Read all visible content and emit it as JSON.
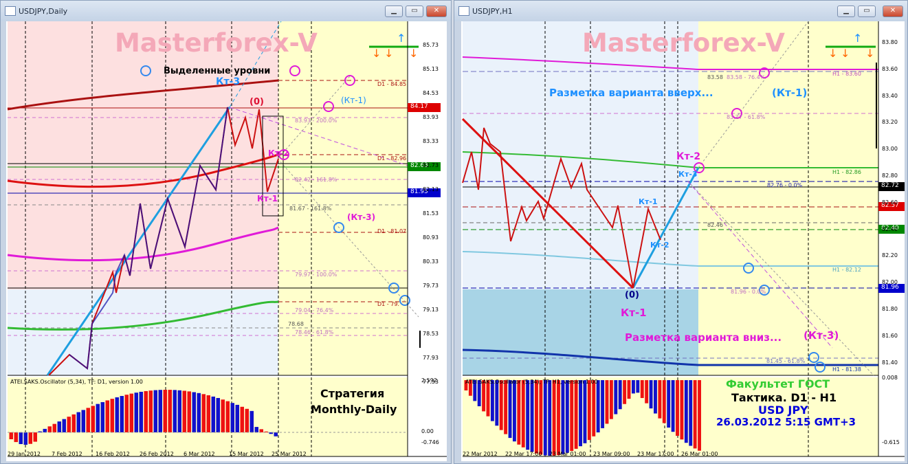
{
  "left": {
    "title": "USDJPY,Daily",
    "watermark": "Masterforex-V",
    "label_levels": "Выделенные уровни",
    "kt3": "Кт-3",
    "zero": "(0)",
    "kt1_paren": "(Кт-1)",
    "kt2": "Кт-2",
    "kt1": "Кт-1",
    "kt3_paren": "(Кт-3)",
    "price_axis": [
      "85.73",
      "85.13",
      "84.53",
      "83.93",
      "83.33",
      "82.73",
      "82.13",
      "81.53",
      "80.93",
      "80.33",
      "79.73",
      "79.13",
      "78.53",
      "77.93",
      "77.33"
    ],
    "tag_red": "84.17",
    "tag_green": "82.63",
    "tag_blue": "81.95",
    "lvl_d1_8485": "D1 - 84.85",
    "lvl_200": "83.93 - 200.0%",
    "lvl_d1_8296": "D1 - 82.96",
    "lvl_1618a": "82.42 - 161.8%",
    "lvl_1618b": "81.67 - 161.8%",
    "lvl_d1_8107": "D1 - 81.07",
    "lvl_100": "79.97 - 100.0%",
    "lvl_d1_79": "D1 - 79.",
    "lvl_764": "79.04 - 76.4%",
    "lvl_7868": "78.68",
    "lvl_618": "78.46 - 61.8%",
    "osc_title": "ATEI.SAKS.Oscillator (5,34), TF: D1, version 1.00",
    "osc_axis": [
      "2.592",
      "0.00",
      "-0.746"
    ],
    "strategy_line1": "Стратегия",
    "strategy_line2": "Monthly-Daily",
    "time_axis": [
      "29 Jan 2012",
      "7 Feb 2012",
      "16 Feb 2012",
      "26 Feb 2012",
      "6 Mar 2012",
      "15 Mar 2012",
      "25 Mar 2012"
    ]
  },
  "right": {
    "title": "USDJPY,H1",
    "watermark": "Masterforex-V",
    "up_text": "Разметка варианта вверх...",
    "down_text": "Разметка варианта вниз...",
    "kt1_paren": "(Кт-1)",
    "kt2": "Кт-2",
    "kt3": "Кт-3",
    "kt1": "Кт-1",
    "kt2b": "Кт-2",
    "zero": "(0)",
    "kt1_big": "Кт-1",
    "kt3_paren": "(Кт-3)",
    "price_axis": [
      "83.80",
      "83.60",
      "83.40",
      "83.20",
      "83.00",
      "82.80",
      "82.60",
      "82.40",
      "82.20",
      "82.00",
      "81.80",
      "81.60",
      "81.40"
    ],
    "tag_black": "82.72",
    "tag_red": "82.57",
    "tag_green": "82.40",
    "tag_blue": "81.96",
    "lvl_8358": "83.58",
    "lvl_8358b": "83.58 - 76.4%",
    "lvl_h1_8360": "H1 - 83.60",
    "lvl_618a": "83.27 - 61.8%",
    "lvl_h1_8286": "H1 - 82.86",
    "lvl_8276": "82.76 - 0.0%",
    "lvl_8246": "82.46",
    "lvl_h1_8212": "H1 - 82.12",
    "lvl_8196": "81.96 - 0.0%",
    "lvl_8145": "81.45 - 61.8%",
    "lvl_h1_8138": "H1 - 81.38",
    "osc_title": "ATEI.SAKS.Oscillator (5,34), TF: H1, version 1.00",
    "osc_axis": [
      "0.008",
      "-0.615"
    ],
    "faculty": "Факультет ГОСТ",
    "tactic": "Тактика. D1 - H1",
    "pair": "USD JPY",
    "date": "26.03.2012 5:15 GMT+3",
    "time_axis": [
      "22 Mar 2012",
      "22 Mar 17:00",
      "23 Mar 01:00",
      "23 Mar 09:00",
      "23 Mar 17:00",
      "26 Mar 01:00"
    ]
  },
  "colors": {
    "watermark": "#f4a8b8",
    "blue_text": "#1e90ff",
    "magenta": "#e01ad8",
    "red_tag": "#dd0000",
    "green_tag": "#008800",
    "blue_tag": "#0000cc"
  },
  "window_buttons": {
    "minimize": "▁",
    "maximize": "▭",
    "close": "✕"
  }
}
